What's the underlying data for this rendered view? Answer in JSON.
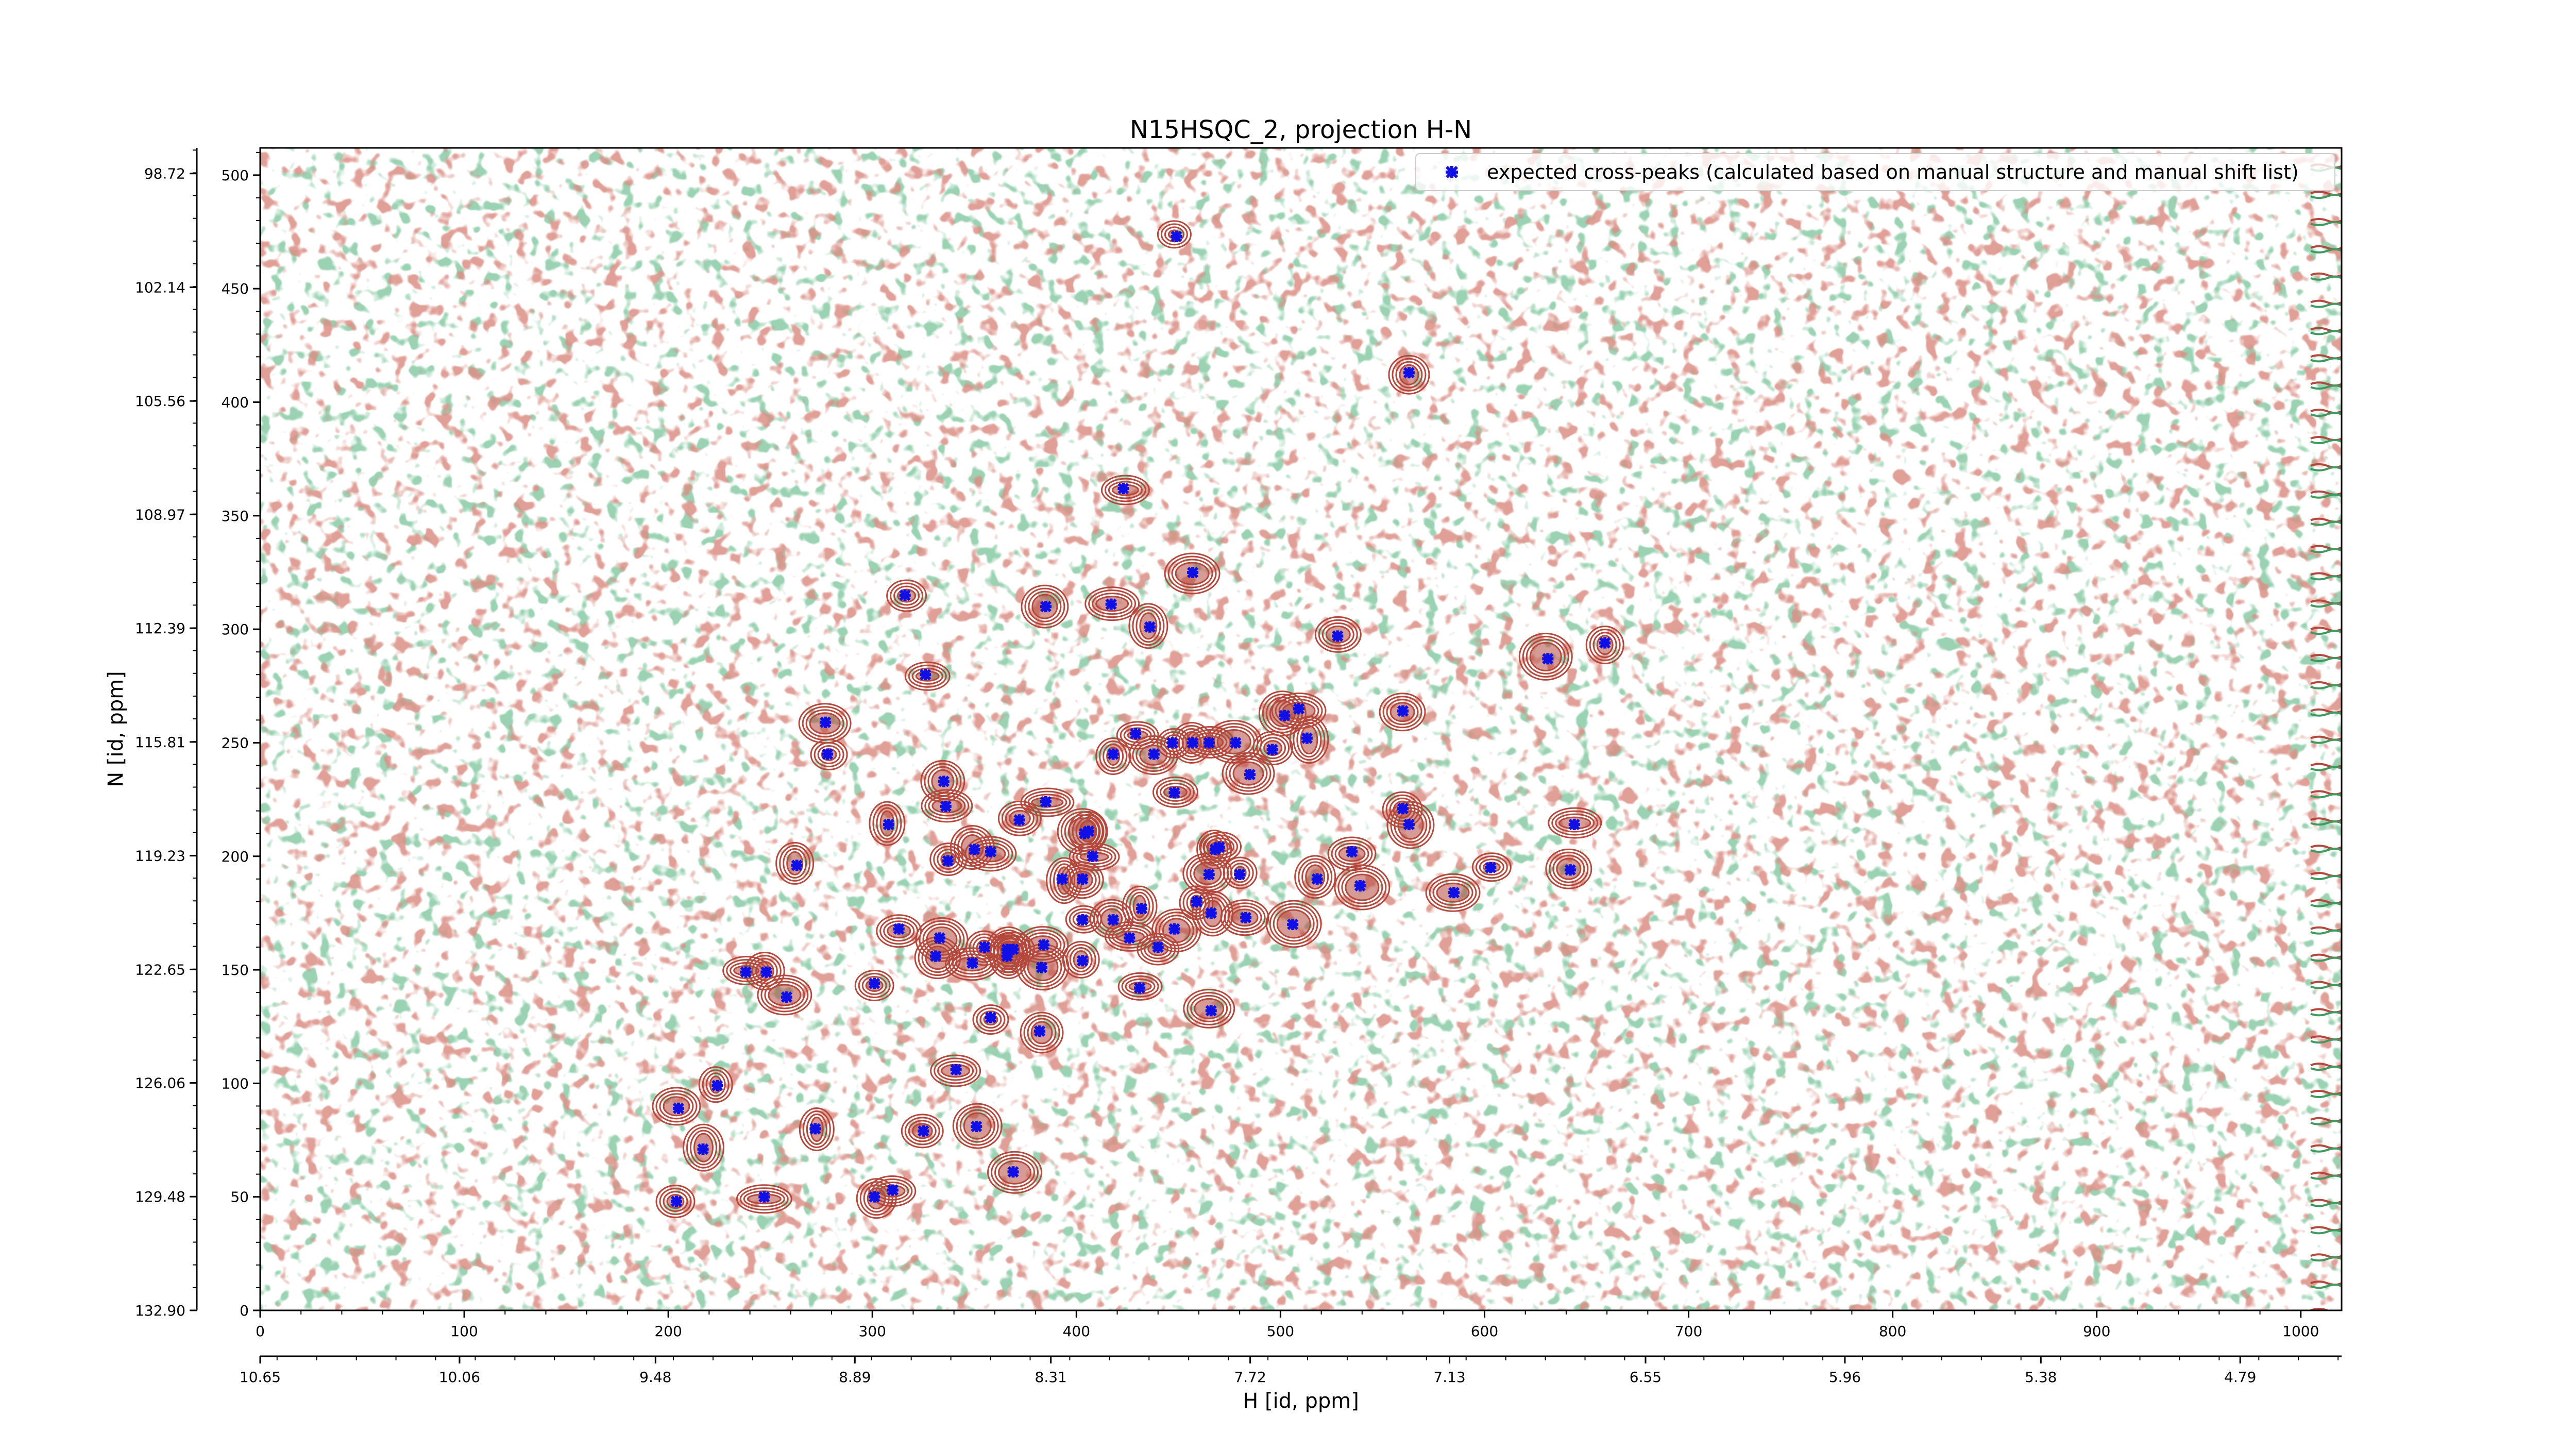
{
  "chart_data": {
    "type": "scatter",
    "title": "N15HSQC_2, projection H-N",
    "xlabel": "H [id, ppm]",
    "ylabel": "N [id, ppm]",
    "x_index_range": [
      0,
      1020
    ],
    "y_index_range": [
      0,
      512
    ],
    "x_ppm_range": [
      10.65,
      4.49
    ],
    "y_ppm_range": [
      132.9,
      97.95
    ],
    "x_index_ticks": [
      "0",
      "100",
      "200",
      "300",
      "400",
      "500",
      "600",
      "700",
      "800",
      "900",
      "1000"
    ],
    "x_ppm_ticks": [
      "10.65",
      "10.06",
      "9.48",
      "8.89",
      "8.31",
      "7.72",
      "7.13",
      "6.55",
      "5.96",
      "5.38",
      "4.79"
    ],
    "y_index_ticks": [
      "0",
      "50",
      "100",
      "150",
      "200",
      "250",
      "300",
      "350",
      "400",
      "450",
      "500"
    ],
    "y_ppm_ticks": [
      "132.90",
      "129.48",
      "126.06",
      "122.65",
      "119.23",
      "115.81",
      "112.39",
      "108.97",
      "105.56",
      "102.14",
      "98.72"
    ],
    "legend": {
      "label": "expected cross-peaks (calculated based on manual structure and manual shift list)",
      "location": "upper-right"
    },
    "colors": {
      "positive_contour": "#b5483c",
      "negative_contour": "#3f9a60",
      "peak_marker": "#1010e6"
    },
    "series": [
      {
        "name": "expected cross-peaks (calculated based on manual structure and manual shift list)",
        "x": [
          449,
          563,
          423,
          457,
          316,
          385,
          417,
          436,
          528,
          631,
          659,
          326,
          277,
          278,
          335,
          336,
          308,
          372,
          404,
          418,
          429,
          438,
          447,
          457,
          465,
          478,
          496,
          502,
          509,
          513,
          560,
          385,
          406,
          448,
          485,
          337,
          350,
          358,
          393,
          403,
          408,
          468,
          470,
          465,
          480,
          518,
          535,
          539,
          560,
          563,
          585,
          603,
          642,
          644,
          263,
          313,
          333,
          355,
          366,
          384,
          403,
          418,
          426,
          432,
          440,
          448,
          459,
          466,
          483,
          506,
          248,
          238,
          258,
          301,
          331,
          349,
          366,
          369,
          383,
          403,
          431,
          466,
          358,
          382,
          341,
          272,
          325,
          351,
          224,
          217,
          205,
          247,
          301,
          310,
          369,
          204
        ],
        "y": [
          473,
          413,
          362,
          325,
          315,
          310,
          311,
          301,
          297,
          287,
          294,
          280,
          259,
          245,
          233,
          222,
          214,
          216,
          210,
          245,
          254,
          245,
          250,
          250,
          250,
          250,
          247,
          262,
          265,
          252,
          264,
          224,
          211,
          228,
          236,
          198,
          203,
          202,
          190,
          190,
          200,
          203,
          204,
          192,
          192,
          190,
          202,
          187,
          221,
          214,
          184,
          195,
          194,
          214,
          196,
          168,
          164,
          160,
          159,
          161,
          172,
          172,
          164,
          177,
          160,
          168,
          180,
          175,
          173,
          170,
          149,
          149,
          138,
          144,
          156,
          153,
          156,
          159,
          151,
          154,
          142,
          132,
          129,
          123,
          106,
          80,
          79,
          81,
          99,
          71,
          89,
          50,
          50,
          53,
          61,
          48
        ]
      }
    ]
  }
}
